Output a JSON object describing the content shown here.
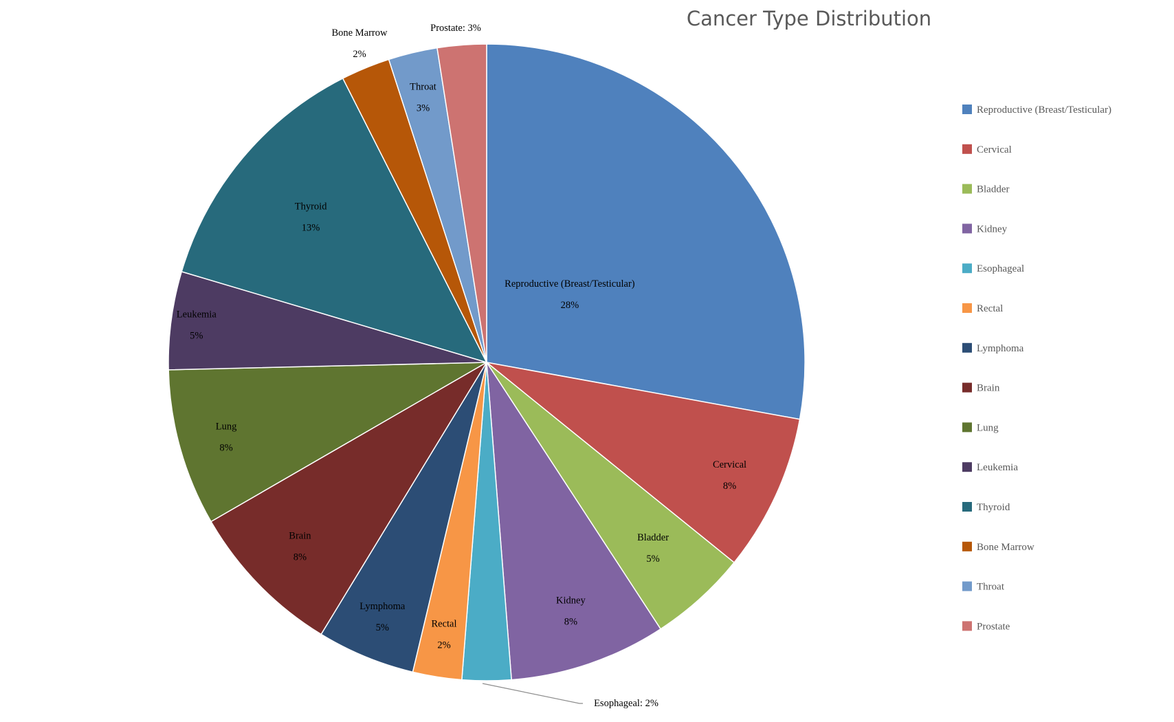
{
  "chart_data": {
    "type": "pie",
    "title": "Cancer Type Distribution",
    "legend_position": "right",
    "start_angle_deg": 0,
    "direction": "clockwise",
    "slices": [
      {
        "name": "Reproductive (Breast/Testicular)",
        "value": 28,
        "percent_label": "28%",
        "color": "#4F81BD"
      },
      {
        "name": "Cervical",
        "value": 8,
        "percent_label": "8%",
        "color": "#C0504D"
      },
      {
        "name": "Bladder",
        "value": 5,
        "percent_label": "5%",
        "color": "#9BBB59"
      },
      {
        "name": "Kidney",
        "value": 8,
        "percent_label": "8%",
        "color": "#8064A2"
      },
      {
        "name": "Esophageal",
        "value": 2.5,
        "percent_label": "2%",
        "color": "#4BACC6"
      },
      {
        "name": "Rectal",
        "value": 2.5,
        "percent_label": "2%",
        "color": "#F79646"
      },
      {
        "name": "Lymphoma",
        "value": 5,
        "percent_label": "5%",
        "color": "#2C4D75"
      },
      {
        "name": "Brain",
        "value": 8,
        "percent_label": "8%",
        "color": "#772C2A"
      },
      {
        "name": "Lung",
        "value": 8,
        "percent_label": "8%",
        "color": "#5F7530"
      },
      {
        "name": "Leukemia",
        "value": 5,
        "percent_label": "5%",
        "color": "#4D3B62"
      },
      {
        "name": "Thyroid",
        "value": 13,
        "percent_label": "13%",
        "color": "#276A7C"
      },
      {
        "name": "Bone Marrow",
        "value": 2.5,
        "percent_label": "2%",
        "color": "#B65708"
      },
      {
        "name": "Throat",
        "value": 2.5,
        "percent_label": "3%",
        "color": "#729ACA"
      },
      {
        "name": "Prostate",
        "value": 2.5,
        "percent_label": "3%",
        "color": "#CD7371"
      }
    ]
  }
}
